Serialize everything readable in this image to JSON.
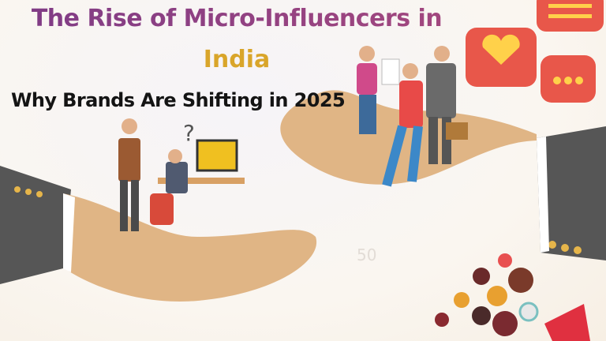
{
  "header": {
    "title_line1": "The Rise of Micro-Influencers in",
    "title_line2": "India",
    "subtitle": "Why Brands Are Shifting in 2025"
  },
  "colors": {
    "title": "#8a3f86",
    "title_accent": "#d9a52a",
    "subtitle": "#141414",
    "hand": "#e0b585",
    "sleeve": "#555555",
    "speech_bubble": "#e8574a"
  },
  "illustration": {
    "icons": [
      "hand-left-icon",
      "hand-right-icon",
      "office-worker-icon",
      "business-team-icon",
      "speech-bubble-heart-icon",
      "megaphone-icon",
      "question-mark-icon"
    ],
    "background_number": "50"
  }
}
